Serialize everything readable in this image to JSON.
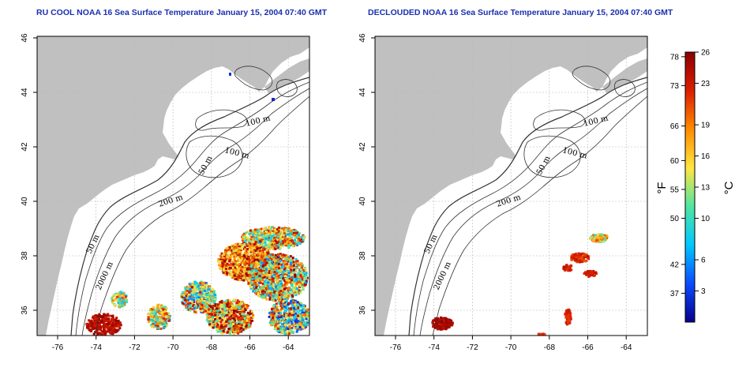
{
  "left_panel": {
    "title": "RU COOL NOAA 16 Sea Surface Temperature January 15, 2004 07:40 GMT"
  },
  "right_panel": {
    "title": "DECLOUDED NOAA 16 Sea Surface Temperature January 15, 2004 07:40 GMT"
  },
  "axes": {
    "lon_ticks": [
      "-76",
      "-74",
      "-72",
      "-70",
      "-68",
      "-66",
      "-64"
    ],
    "lat_ticks": [
      "36",
      "38",
      "40",
      "42",
      "44",
      "46"
    ]
  },
  "contour_labels": {
    "c100_ne": "100 m",
    "c100_c": "100 m",
    "c50_gb": "50 m",
    "c200": "200 m",
    "c50_sw": "50 m",
    "c2000": "2000 m"
  },
  "colorbar": {
    "fahrenheit_ticks": [
      "78",
      "73",
      "66",
      "60",
      "55",
      "50",
      "42",
      "37"
    ],
    "celsius_ticks": [
      "26",
      "23",
      "19",
      "16",
      "13",
      "10",
      "6",
      "3"
    ],
    "fahrenheit_unit": "°F",
    "celsius_unit": "°C",
    "range_c": [
      0,
      26
    ],
    "colors": [
      "#08008c",
      "#0a4cff",
      "#00c8ff",
      "#50e6a0",
      "#ffe640",
      "#ff8c00",
      "#dc1e00",
      "#8c0000"
    ]
  },
  "map_colors": {
    "land": "#c0c0c0",
    "sea": "#ffffff",
    "grid": "#b8b8b8"
  }
}
